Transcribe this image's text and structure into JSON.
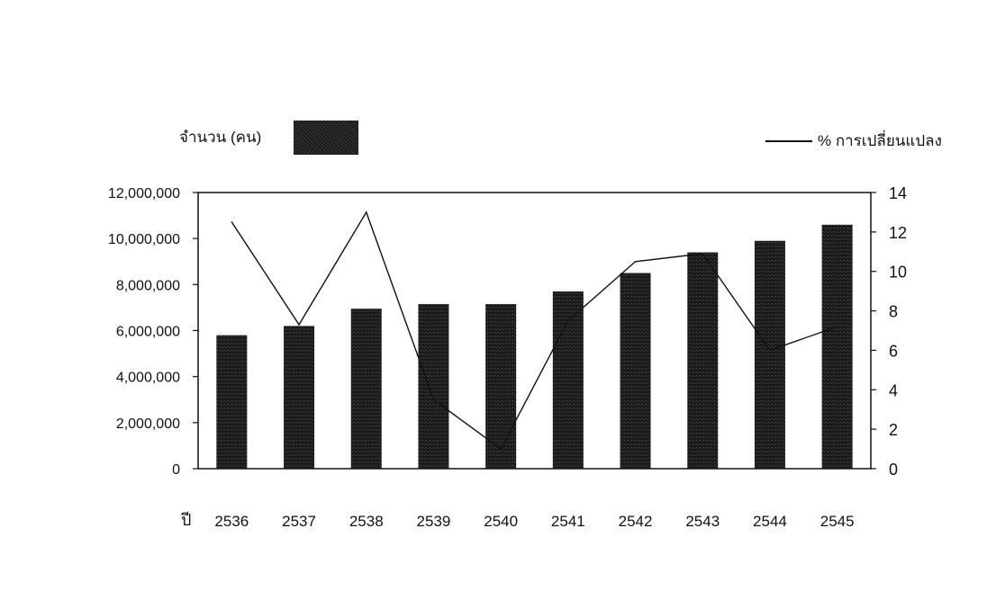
{
  "chart_data": {
    "type": "bar",
    "categories": [
      "2536",
      "2537",
      "2538",
      "2539",
      "2540",
      "2541",
      "2542",
      "2543",
      "2544",
      "2545"
    ],
    "x_label_prefix": "ปี",
    "series": [
      {
        "name": "จำนวน (คน)",
        "type": "bar",
        "axis": "left",
        "values": [
          5800000,
          6200000,
          6950000,
          7150000,
          7150000,
          7700000,
          8500000,
          9400000,
          9900000,
          10600000
        ]
      },
      {
        "name": "% การเปลี่ยนแปลง",
        "type": "line",
        "axis": "right",
        "values": [
          12.5,
          7.3,
          13.0,
          3.5,
          1.0,
          7.5,
          10.5,
          10.9,
          6.0,
          7.2
        ]
      }
    ],
    "left_axis": {
      "ylim": [
        0,
        12000000
      ],
      "ticks": [
        0,
        2000000,
        4000000,
        6000000,
        8000000,
        10000000,
        12000000
      ],
      "tick_labels": [
        "0",
        "2,000,000",
        "4,000,000",
        "6,000,000",
        "8,000,000",
        "10,000,000",
        "12,000,000"
      ]
    },
    "right_axis": {
      "ylim": [
        0,
        14
      ],
      "ticks": [
        0,
        2,
        4,
        6,
        8,
        10,
        12,
        14
      ],
      "tick_labels": [
        "0",
        "2",
        "4",
        "6",
        "8",
        "10",
        "12",
        "14"
      ]
    },
    "grid": false,
    "legend_position": "top",
    "colors": {
      "bar": "#1b1b1b",
      "line": "#111111"
    }
  }
}
